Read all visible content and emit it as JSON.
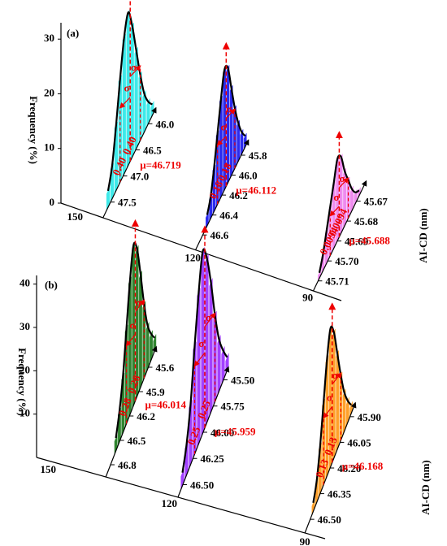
{
  "chart_data": [
    {
      "type": "histogram3d",
      "title": "(a)",
      "ylabel": "Frequency (%)",
      "xlabel": "AI-CD (nm)",
      "sigma_symbol": "σ",
      "ylim": [
        0,
        33
      ],
      "yticks": [
        0,
        10,
        20,
        30
      ],
      "depth_ticks": [
        150,
        120,
        90
      ],
      "series": [
        {
          "color": "#2ee8e8",
          "values": [
            2,
            4,
            7,
            12,
            18,
            24,
            28,
            25,
            19,
            12,
            6,
            3
          ],
          "cdlim": [
            47.8,
            45.7
          ],
          "cdticks": [
            {
              "value": 46.0,
              "label": "46.0"
            },
            {
              "value": 46.5,
              "label": "46.5"
            },
            {
              "value": 47.0,
              "label": "47.0"
            },
            {
              "value": 47.5,
              "label": "47.5"
            }
          ],
          "mu": {
            "value": 46.719,
            "label": "μ=46.719"
          },
          "sigma": {
            "value": 0.4,
            "label": "0.40"
          }
        },
        {
          "color": "#1a1aee",
          "values": [
            2,
            4,
            7,
            11,
            16,
            21,
            22,
            18,
            13,
            8,
            4,
            2
          ],
          "cdlim": [
            46.75,
            45.65
          ],
          "cdticks": [
            {
              "value": 45.8,
              "label": "45.8"
            },
            {
              "value": 46.0,
              "label": "46.0"
            },
            {
              "value": 46.2,
              "label": "46.2"
            },
            {
              "value": 46.4,
              "label": "46.4"
            },
            {
              "value": 46.6,
              "label": "46.6"
            }
          ],
          "mu": {
            "value": 46.112,
            "label": "μ=46.112"
          },
          "sigma": {
            "value": 0.18,
            "label": "0.18"
          }
        },
        {
          "color": "#ee82ee",
          "values": [
            1,
            2,
            4,
            7,
            10,
            14,
            15,
            12,
            9,
            6,
            3,
            1
          ],
          "cdlim": [
            45.715,
            45.66
          ],
          "cdticks": [
            45.67,
            45.68,
            45.69,
            {
              "value": 45.7,
              "label": "45.70"
            },
            45.71
          ],
          "mu": {
            "value": 45.688,
            "label": "μ=45.688"
          },
          "sigma": {
            "value": 0.0094,
            "label": "0.0094"
          }
        }
      ]
    },
    {
      "type": "histogram3d",
      "title": "(b)",
      "ylabel": "Frequency (%)",
      "xlabel": "AI-CD (nm)",
      "sigma_symbol": "σ",
      "ylim": [
        0,
        42
      ],
      "yticks": [
        10,
        20,
        30,
        40
      ],
      "depth_ticks": [
        150,
        120,
        90
      ],
      "series": [
        {
          "color": "#1e7a1e",
          "values": [
            3,
            6,
            10,
            17,
            26,
            34,
            37,
            31,
            22,
            13,
            7,
            3
          ],
          "cdlim": [
            46.95,
            45.35
          ],
          "cdticks": [
            45.6,
            45.9,
            46.2,
            46.5,
            46.8
          ],
          "mu": {
            "value": 46.014,
            "label": "μ=46.014"
          },
          "sigma": {
            "value": 0.28,
            "label": "0.28"
          }
        },
        {
          "color": "#9b30ff",
          "values": [
            3,
            7,
            12,
            20,
            30,
            38,
            42,
            35,
            25,
            14,
            7,
            3
          ],
          "cdlim": [
            46.62,
            45.38
          ],
          "cdticks": [
            {
              "value": 45.5,
              "label": "45.50"
            },
            45.75,
            {
              "value": 46.0,
              "label": "46.00"
            },
            46.25,
            {
              "value": 46.5,
              "label": "46.50"
            }
          ],
          "mu": {
            "value": 45.959,
            "label": "μ=45.959"
          },
          "sigma": {
            "value": 0.25,
            "label": "0.25"
          }
        },
        {
          "color": "#ff9a1a",
          "values": [
            2,
            5,
            9,
            15,
            22,
            29,
            32,
            27,
            19,
            11,
            5,
            2
          ],
          "cdlim": [
            46.58,
            45.82
          ],
          "cdticks": [
            {
              "value": 45.9,
              "label": "45.90"
            },
            46.05,
            {
              "value": 46.2,
              "label": "46.20"
            },
            46.35,
            {
              "value": 46.5,
              "label": "46.50"
            }
          ],
          "mu": {
            "value": 46.168,
            "label": "μ=46.168"
          },
          "sigma": {
            "value": 0.13,
            "label": "0.13"
          }
        }
      ]
    }
  ]
}
